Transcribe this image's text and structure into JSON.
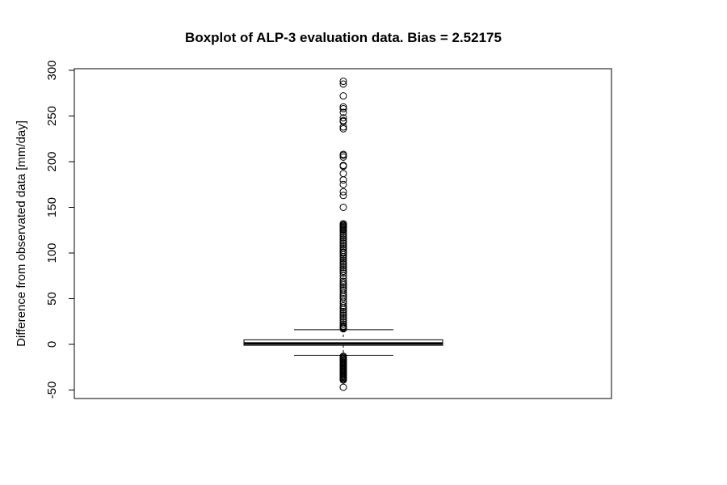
{
  "chart_data": {
    "type": "boxplot",
    "title": "Boxplot of ALP-3 evaluation data. Bias = 2.52175",
    "xlabel": "",
    "ylabel": "Difference from observated data [mm/day]",
    "ylim": [
      -60,
      302
    ],
    "yticks": [
      -50,
      0,
      50,
      100,
      150,
      200,
      250,
      300
    ],
    "grid": false,
    "box": {
      "whisker_low": -12,
      "q1": -1,
      "median": 1,
      "q3": 5,
      "whisker_high": 16
    },
    "outliers": [
      288,
      285,
      272,
      260,
      258,
      254,
      248,
      245,
      244,
      238,
      236,
      208,
      207,
      205,
      196,
      195,
      187,
      180,
      175,
      167,
      163,
      150,
      132,
      131,
      130,
      129,
      128,
      127,
      126,
      125,
      123,
      121,
      119,
      117,
      115,
      113,
      111,
      109,
      107,
      105,
      103,
      101,
      100,
      98,
      96,
      94,
      92,
      90,
      88,
      86,
      84,
      82,
      80,
      78,
      75,
      72,
      69,
      67,
      65,
      63,
      61,
      59,
      56,
      54,
      52,
      50,
      47,
      45,
      42,
      40,
      38,
      36,
      34,
      32,
      30,
      28,
      26,
      24,
      22,
      20,
      19,
      18,
      17,
      -13,
      -14,
      -15,
      -16,
      -17,
      -18,
      -19,
      -20,
      -21,
      -22,
      -23,
      -24,
      -25,
      -26,
      -27,
      -28,
      -29,
      -30,
      -31,
      -32,
      -33,
      -34,
      -35,
      -36,
      -37,
      -38,
      -39,
      -47
    ]
  }
}
